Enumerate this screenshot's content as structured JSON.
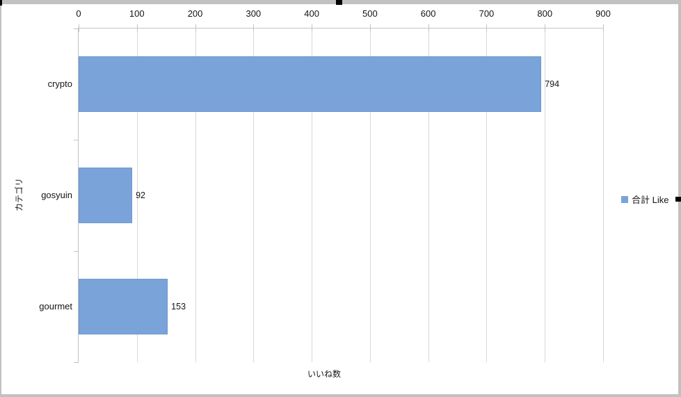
{
  "window": {
    "frame_color": "#c1c1c1",
    "handle_color": "#000000",
    "selection_handles": [
      "top-left",
      "top-center",
      "right-middle"
    ]
  },
  "chart_data": {
    "type": "bar",
    "orientation": "horizontal",
    "title": "",
    "categories": [
      "crypto",
      "gosyuin",
      "gourmet"
    ],
    "series": [
      {
        "name": "合計 Like",
        "values": [
          794,
          92,
          153
        ]
      }
    ],
    "data_labels": [
      794,
      92,
      153
    ],
    "xlabel": "いいね数",
    "ylabel": "カテゴリ",
    "xlim": [
      0,
      900
    ],
    "xticks": [
      0,
      100,
      200,
      300,
      400,
      500,
      600,
      700,
      800,
      900
    ],
    "grid": true,
    "legend_position": "right",
    "colors": {
      "bar": "#7aa4d9",
      "bar_border": "#6b96cc",
      "grid": "#d8d8d8",
      "axis": "#c3c3c3",
      "text": "#141414"
    }
  },
  "legend": {
    "items": [
      {
        "label": "合計 Like",
        "color": "#7aa4d9"
      }
    ]
  }
}
